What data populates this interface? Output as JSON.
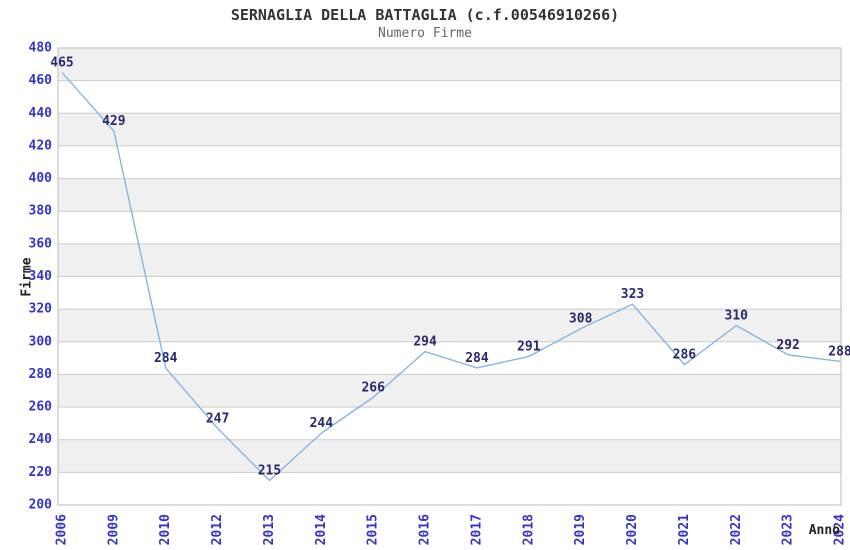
{
  "page": {
    "background": "#ffffff"
  },
  "chart_data": {
    "type": "line",
    "title": "SERNAGLIA DELLA BATTAGLIA (c.f.00546910266)",
    "subtitle": "Numero Firme",
    "xlabel": "Anno",
    "ylabel": "Firme",
    "categories": [
      "2006",
      "2009",
      "2010",
      "2012",
      "2013",
      "2014",
      "2015",
      "2016",
      "2017",
      "2018",
      "2019",
      "2020",
      "2021",
      "2022",
      "2023",
      "2024"
    ],
    "values": [
      465,
      429,
      284,
      247,
      215,
      244,
      266,
      294,
      284,
      291,
      308,
      323,
      286,
      310,
      292,
      288
    ],
    "ylim": [
      200,
      480
    ],
    "ytick_step": 20,
    "grid": "horizontal-bands",
    "legend": "none",
    "markers": "none",
    "colors": {
      "line": "#7fb0e2",
      "tick_label": "#3333cc",
      "data_label": "#28286e",
      "band": "#f0f0f0",
      "gridline": "#cccccc",
      "plot_border": "#bbbbbb",
      "title": "#333333",
      "subtitle": "#666666",
      "axis_label": "#222222"
    }
  }
}
